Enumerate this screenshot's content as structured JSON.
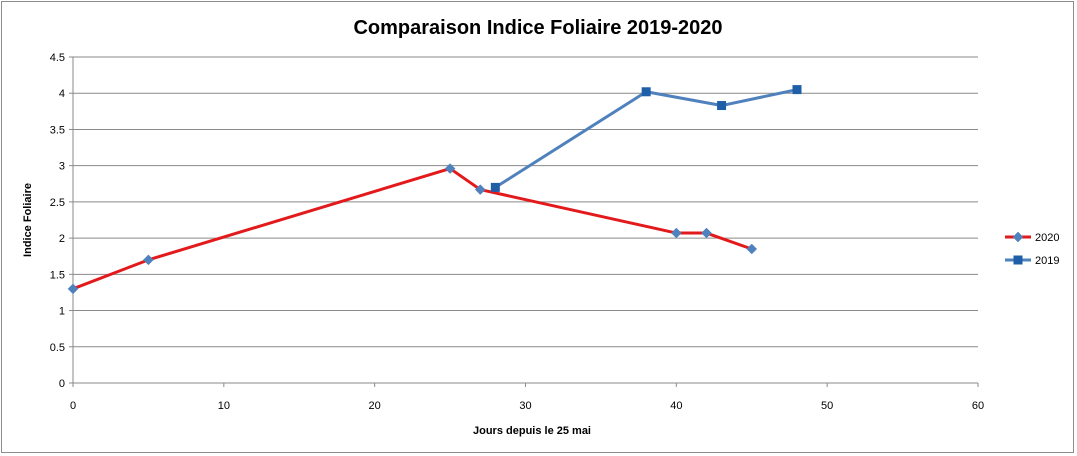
{
  "chart_data": {
    "type": "line",
    "title": "Comparaison Indice Foliaire 2019-2020",
    "xlabel": "Jours depuis le 25 mai",
    "ylabel": "Indice Foliaire",
    "xlim": [
      0,
      60
    ],
    "ylim": [
      0,
      4.5
    ],
    "xticks": [
      0,
      10,
      20,
      30,
      40,
      50,
      60
    ],
    "yticks": [
      0,
      0.5,
      1,
      1.5,
      2,
      2.5,
      3,
      3.5,
      4,
      4.5
    ],
    "grid": "horizontal",
    "legend_position": "right",
    "series": [
      {
        "name": "2020",
        "color": "#e31a1c",
        "marker_color": "#4f81bd",
        "marker": "diamond",
        "points": [
          {
            "x": 0,
            "y": 1.3
          },
          {
            "x": 5,
            "y": 1.7
          },
          {
            "x": 25,
            "y": 2.96
          },
          {
            "x": 27,
            "y": 2.67
          },
          {
            "x": 40,
            "y": 2.07
          },
          {
            "x": 42,
            "y": 2.07
          },
          {
            "x": 45,
            "y": 1.85
          }
        ]
      },
      {
        "name": "2019",
        "color": "#4f81bd",
        "marker_color": "#1f5fa8",
        "marker": "square",
        "points": [
          {
            "x": 28,
            "y": 2.7
          },
          {
            "x": 38,
            "y": 4.02
          },
          {
            "x": 43,
            "y": 3.83
          },
          {
            "x": 48,
            "y": 4.05
          }
        ]
      }
    ]
  }
}
